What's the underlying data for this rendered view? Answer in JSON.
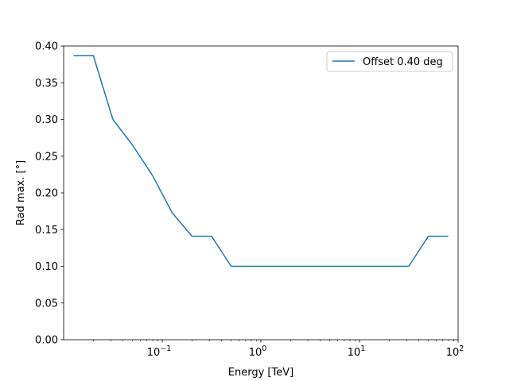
{
  "chart_data": {
    "type": "line",
    "xlabel": "Energy [TeV]",
    "ylabel": "Rad max. [°]",
    "xscale": "log",
    "xlim": [
      0.01,
      100
    ],
    "ylim": [
      0.0,
      0.4
    ],
    "x_ticks": [
      {
        "value": 0.1,
        "base": "10",
        "exp": "−1"
      },
      {
        "value": 1,
        "base": "10",
        "exp": "0"
      },
      {
        "value": 10,
        "base": "10",
        "exp": "1"
      },
      {
        "value": 100,
        "base": "10",
        "exp": "2"
      }
    ],
    "y_ticks": [
      {
        "value": 0.0,
        "label": "0.00"
      },
      {
        "value": 0.05,
        "label": "0.05"
      },
      {
        "value": 0.1,
        "label": "0.10"
      },
      {
        "value": 0.15,
        "label": "0.15"
      },
      {
        "value": 0.2,
        "label": "0.20"
      },
      {
        "value": 0.25,
        "label": "0.25"
      },
      {
        "value": 0.3,
        "label": "0.30"
      },
      {
        "value": 0.35,
        "label": "0.35"
      },
      {
        "value": 0.4,
        "label": "0.40"
      }
    ],
    "grid": false,
    "legend": {
      "placement": "top-right"
    },
    "series": [
      {
        "name": "Offset 0.40 deg",
        "color": "#1f77b4",
        "x": [
          0.0126,
          0.02,
          0.0316,
          0.05,
          0.0794,
          0.126,
          0.2,
          0.316,
          0.5,
          0.794,
          1.26,
          2.0,
          3.16,
          5.0,
          7.94,
          12.6,
          20,
          31.6,
          50,
          79.4
        ],
        "y": [
          0.387,
          0.387,
          0.3,
          0.265,
          0.224,
          0.173,
          0.141,
          0.141,
          0.1,
          0.1,
          0.1,
          0.1,
          0.1,
          0.1,
          0.1,
          0.1,
          0.1,
          0.1,
          0.141,
          0.141
        ]
      }
    ]
  }
}
